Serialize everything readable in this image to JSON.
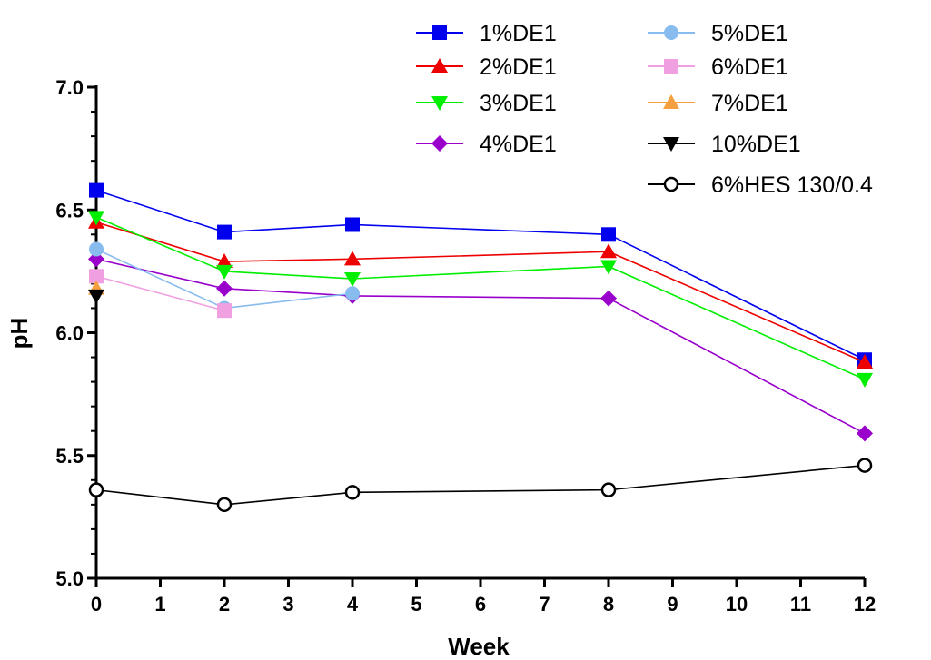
{
  "chart_data": {
    "type": "line",
    "title": "",
    "xlabel": "Week",
    "ylabel": "pH",
    "xlim": [
      0,
      12
    ],
    "ylim": [
      5.0,
      7.0
    ],
    "x_ticks": [
      "0",
      "1",
      "2",
      "3",
      "4",
      "5",
      "6",
      "7",
      "8",
      "9",
      "10",
      "11",
      "12"
    ],
    "y_ticks": [
      "5.0",
      "5.5",
      "6.0",
      "6.5",
      "7.0"
    ],
    "grid": false,
    "legend_position": "top-right",
    "series": [
      {
        "name": "1%DE1",
        "color": "#0000ee",
        "marker": "square",
        "x": [
          0,
          2,
          4,
          8,
          12
        ],
        "y": [
          6.58,
          6.41,
          6.44,
          6.4,
          5.89
        ]
      },
      {
        "name": "2%DE1",
        "color": "#ee0000",
        "marker": "triangle-up",
        "x": [
          0,
          2,
          4,
          8,
          12
        ],
        "y": [
          6.45,
          6.29,
          6.3,
          6.33,
          5.88
        ]
      },
      {
        "name": "3%DE1",
        "color": "#00ee00",
        "marker": "triangle-down",
        "x": [
          0,
          2,
          4,
          8,
          12
        ],
        "y": [
          6.47,
          6.25,
          6.22,
          6.27,
          5.81
        ]
      },
      {
        "name": "4%DE1",
        "color": "#9900cc",
        "marker": "diamond",
        "x": [
          0,
          2,
          4,
          8,
          12
        ],
        "y": [
          6.3,
          6.18,
          6.15,
          6.14,
          5.59
        ]
      },
      {
        "name": "5%DE1",
        "color": "#88bbee",
        "marker": "circle",
        "x": [
          0,
          2,
          4
        ],
        "y": [
          6.34,
          6.1,
          6.16
        ]
      },
      {
        "name": "6%DE1",
        "color": "#f0a0e0",
        "marker": "square",
        "x": [
          0,
          2
        ],
        "y": [
          6.23,
          6.09
        ]
      },
      {
        "name": "7%DE1",
        "color": "#f5a040",
        "marker": "triangle-up",
        "x": [
          0
        ],
        "y": [
          6.18
        ]
      },
      {
        "name": "10%DE1",
        "color": "#000000",
        "marker": "triangle-down",
        "x": [
          0
        ],
        "y": [
          6.15
        ]
      },
      {
        "name": "6%HES 130/0.4",
        "color": "#000000",
        "marker": "open-circle",
        "x": [
          0,
          2,
          4,
          8,
          12
        ],
        "y": [
          5.36,
          5.3,
          5.35,
          5.36,
          5.46
        ]
      }
    ]
  }
}
